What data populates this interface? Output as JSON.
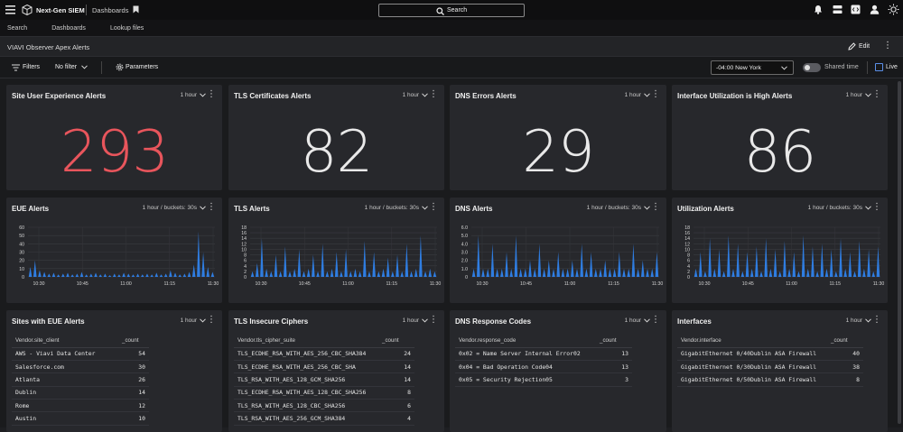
{
  "app": {
    "name": "Next-Gen SIEM",
    "section": "Dashboards",
    "search_label": "Search"
  },
  "nav": {
    "items": [
      "Search",
      "Dashboards",
      "Lookup files"
    ]
  },
  "dashboard": {
    "title": "VIAVI Observer Apex Alerts",
    "edit_label": "Edit"
  },
  "filters": {
    "filters_label": "Filters",
    "no_filter_label": "No filter",
    "parameters_label": "Parameters",
    "timezone": "-04:00 New York",
    "shared_time_label": "Shared time",
    "live_label": "Live"
  },
  "stat_panels": [
    {
      "title": "Site User Experience Alerts",
      "time": "1 hour",
      "value": "293",
      "color": "#e8555c"
    },
    {
      "title": "TLS Certificates Alerts",
      "time": "1 hour",
      "value": "82",
      "color": "#e9e9e9"
    },
    {
      "title": "DNS Errors Alerts",
      "time": "1 hour",
      "value": "29",
      "color": "#e9e9e9"
    },
    {
      "title": "Interface Utilization is High Alerts",
      "time": "1 hour",
      "value": "86",
      "color": "#e9e9e9"
    }
  ],
  "chart_data": [
    {
      "type": "bar",
      "title": "EUE Alerts",
      "time": "1 hour / buckets: 30s",
      "ylim": [
        0,
        60
      ],
      "yticks": [
        "60",
        "50",
        "40",
        "30",
        "20",
        "10",
        "0"
      ],
      "xticks": [
        "10:30",
        "10:45",
        "11:00",
        "11:15",
        "11:30"
      ],
      "values": [
        12,
        20,
        8,
        6,
        4,
        5,
        3,
        4,
        5,
        3,
        4,
        6,
        3,
        4,
        5,
        3,
        4,
        2,
        4,
        3,
        5,
        4,
        3,
        4,
        3,
        4,
        3,
        5,
        3,
        4,
        8,
        5,
        3,
        4,
        6,
        15,
        55,
        30,
        12,
        6
      ]
    },
    {
      "type": "bar",
      "title": "TLS Alerts",
      "time": "1 hour / buckets: 30s",
      "ylim": [
        0,
        18
      ],
      "yticks": [
        "18",
        "16",
        "14",
        "12",
        "10",
        "8",
        "6",
        "4",
        "2",
        "0"
      ],
      "xticks": [
        "10:30",
        "10:45",
        "11:00",
        "11:15",
        "11:30"
      ],
      "values": [
        2,
        5,
        14,
        3,
        2,
        8,
        2,
        11,
        2,
        3,
        10,
        2,
        3,
        8,
        2,
        12,
        2,
        3,
        9,
        2,
        10,
        2,
        3,
        2,
        13,
        2,
        9,
        2,
        3,
        7,
        2,
        8,
        2,
        12,
        2,
        3,
        15,
        2,
        3,
        2
      ]
    },
    {
      "type": "bar",
      "title": "DNS Alerts",
      "time": "1 hour / buckets: 30s",
      "ylim": [
        0,
        6
      ],
      "yticks": [
        "6.0",
        "5.0",
        "4.0",
        "3.0",
        "2.0",
        "1.0",
        "0"
      ],
      "xticks": [
        "10:30",
        "10:45",
        "11:00",
        "11:15",
        "11:30"
      ],
      "values": [
        1,
        5,
        1,
        1,
        4,
        1,
        1,
        3,
        1,
        5,
        1,
        1,
        2,
        1,
        4,
        1,
        2,
        1,
        3,
        1,
        1,
        2,
        1,
        4,
        1,
        3,
        1,
        1,
        2,
        1,
        1,
        3,
        1,
        1,
        4,
        1,
        2,
        1,
        1,
        3
      ]
    },
    {
      "type": "bar",
      "title": "Utilization Alerts",
      "time": "1 hour / buckets: 30s",
      "ylim": [
        0,
        18
      ],
      "yticks": [
        "18",
        "16",
        "14",
        "12",
        "10",
        "8",
        "6",
        "4",
        "2",
        "0"
      ],
      "xticks": [
        "10:30",
        "10:45",
        "11:00",
        "11:15",
        "11:30"
      ],
      "values": [
        3,
        9,
        2,
        14,
        3,
        10,
        2,
        15,
        3,
        12,
        2,
        9,
        3,
        11,
        2,
        14,
        3,
        10,
        2,
        13,
        3,
        9,
        2,
        15,
        3,
        11,
        2,
        12,
        3,
        10,
        2,
        14,
        3,
        9,
        2,
        13,
        3,
        10,
        2,
        11
      ]
    }
  ],
  "tables": [
    {
      "title": "Sites with EUE Alerts",
      "time": "1 hour",
      "columns": [
        "Vendor.site_client",
        "_count"
      ],
      "rows": [
        [
          "AWS - Viavi Data Center",
          "54"
        ],
        [
          "Salesforce.com",
          "30"
        ],
        [
          "Atlanta",
          "26"
        ],
        [
          "Dublin",
          "14"
        ],
        [
          "Rome",
          "12"
        ],
        [
          "Austin",
          "10"
        ]
      ]
    },
    {
      "title": "TLS Insecure Ciphers",
      "time": "1 hour",
      "columns": [
        "Vendor.tls_cipher_suite",
        "_count"
      ],
      "rows": [
        [
          "TLS_ECDHE_RSA_WITH_AES_256_CBC_SHA384",
          "24"
        ],
        [
          "TLS_ECDHE_RSA_WITH_AES_256_CBC_SHA",
          "14"
        ],
        [
          "TLS_RSA_WITH_AES_128_GCM_SHA256",
          "14"
        ],
        [
          "TLS_ECDHE_RSA_WITH_AES_128_CBC_SHA256",
          "8"
        ],
        [
          "TLS_RSA_WITH_AES_128_CBC_SHA256",
          "6"
        ],
        [
          "TLS_RSA_WITH_AES_256_GCM_SHA384",
          "4"
        ]
      ]
    },
    {
      "title": "DNS Response Codes",
      "time": "1 hour",
      "columns": [
        "Vendor.response_code",
        "_count"
      ],
      "rows": [
        [
          "0x02 = Name Server Internal Error02",
          "13"
        ],
        [
          "0x04 = Bad Operation Code04",
          "13"
        ],
        [
          "0x05 = Security Rejection05",
          "3"
        ]
      ]
    },
    {
      "title": "Interfaces",
      "time": "1 hour",
      "columns": [
        "Vendor.interface",
        "_count"
      ],
      "rows": [
        [
          "GigabitEthernet 0/40Dublin ASA Firewall",
          "40"
        ],
        [
          "GigabitEthernet 0/30Dublin ASA Firewall",
          "38"
        ],
        [
          "GigabitEthernet 0/50Dublin ASA Firewall",
          "8"
        ]
      ]
    }
  ]
}
